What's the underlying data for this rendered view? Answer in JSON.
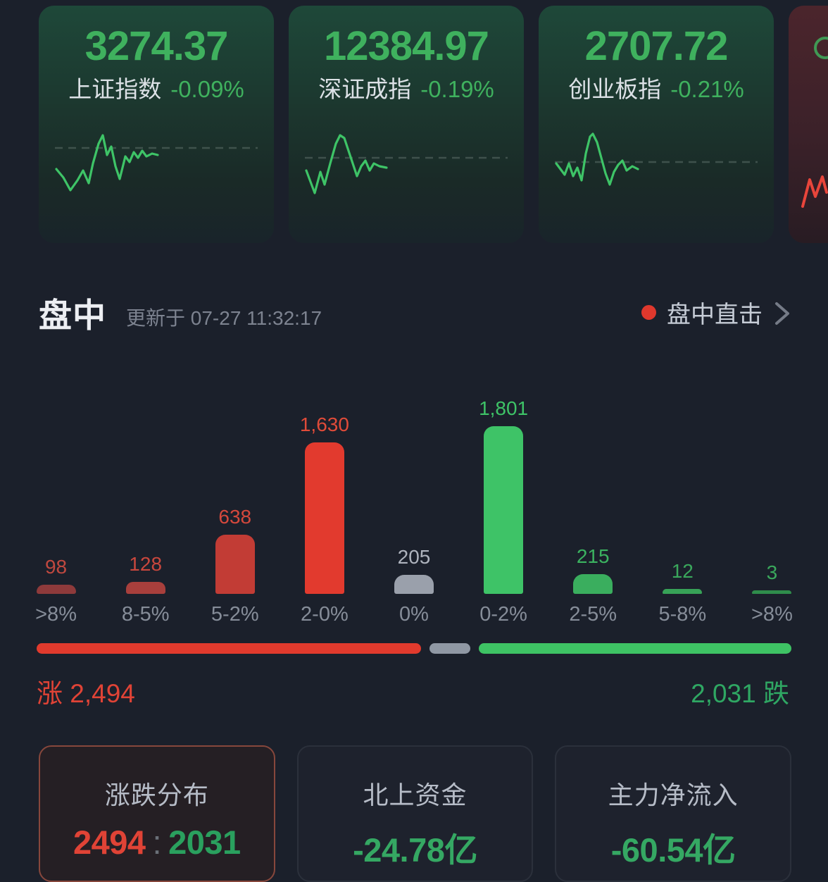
{
  "indices": [
    {
      "value": "3274.37",
      "name": "上证指数",
      "change": "-0.09%"
    },
    {
      "value": "12384.97",
      "name": "深证成指",
      "change": "-0.19%"
    },
    {
      "value": "2707.72",
      "name": "创业板指",
      "change": "-0.21%"
    }
  ],
  "intraday": {
    "title": "盘中",
    "updated_text": "更新于 07-27 11:32:17",
    "live_link": "盘中直击"
  },
  "chart_data": {
    "type": "bar",
    "title": "涨跌分布",
    "categories": [
      ">8%",
      "8-5%",
      "5-2%",
      "2-0%",
      "0%",
      "0-2%",
      "2-5%",
      "5-8%",
      ">8%"
    ],
    "values": [
      98,
      128,
      638,
      1630,
      205,
      1801,
      215,
      12,
      3
    ],
    "value_labels": [
      "98",
      "128",
      "638",
      "1,630",
      "205",
      "1,801",
      "215",
      "12",
      "3"
    ],
    "bar_colors": [
      "#8e3a3b",
      "#a83f3c",
      "#c23c35",
      "#e23a2e",
      "#9aa0ab",
      "#3ec367",
      "#3aae5e",
      "#37a257",
      "#2f8c4b"
    ],
    "label_colors": [
      "#c0483f",
      "#c9473d",
      "#d4483c",
      "#e04b39",
      "#aeb3bd",
      "#3ec367",
      "#3bb260",
      "#3aa85c",
      "#3aa85c"
    ],
    "xlabel": "",
    "ylabel": "",
    "ylim": [
      0,
      1801
    ],
    "grid": false,
    "legend": "none"
  },
  "breadth": {
    "up_count": 2494,
    "flat_count": 205,
    "down_count": 2031,
    "up_label": "涨 2,494",
    "down_label": "2,031 跌",
    "up_color": "#e13a2d",
    "flat_color": "#9098a4",
    "down_color": "#3ec364"
  },
  "footer_cards": [
    {
      "title": "涨跌分布",
      "up": "2494",
      "separator": ":",
      "down": "2031"
    },
    {
      "title": "北上资金",
      "value": "-24.78亿"
    },
    {
      "title": "主力净流入",
      "value": "-60.54亿"
    }
  ]
}
